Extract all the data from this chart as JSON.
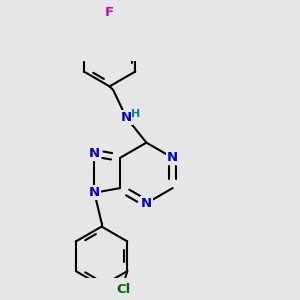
{
  "bg_color": "#e6e6e6",
  "bond_color": "#000000",
  "bond_width": 1.5,
  "atom_colors": {
    "N": "#0000cc",
    "C": "#000000",
    "F": "#cc00cc",
    "Cl": "#006600",
    "H": "#008888"
  },
  "fs": 9.5
}
